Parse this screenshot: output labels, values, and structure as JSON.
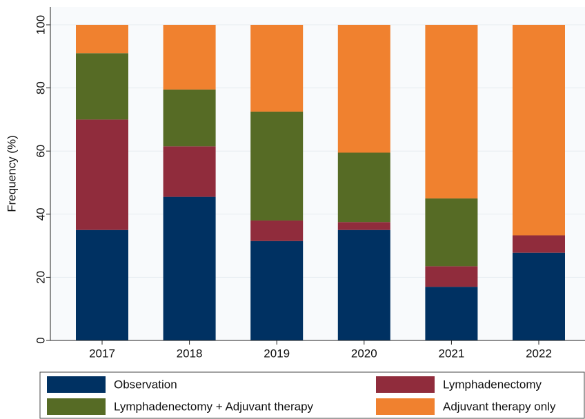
{
  "chart_data": {
    "type": "stacked_bar",
    "y_label": "Frequency (%)",
    "categories": [
      "2017",
      "2018",
      "2019",
      "2020",
      "2021",
      "2022"
    ],
    "series": [
      {
        "name": "Observation",
        "color": "#003162",
        "values": [
          35,
          45.5,
          31.5,
          35,
          17,
          27.8
        ]
      },
      {
        "name": "Lymphadenectomy",
        "color": "#902c3c",
        "values": [
          35,
          16,
          6.5,
          2.5,
          6.5,
          5.5
        ]
      },
      {
        "name": "Lymphadenectomy + Adjuvant therapy",
        "color": "#566b25",
        "values": [
          21,
          18,
          34.5,
          22,
          21.5,
          0
        ]
      },
      {
        "name": "Adjuvant therapy only",
        "color": "#f0812f",
        "values": [
          9,
          20.5,
          27.5,
          40.5,
          55,
          66.7
        ]
      }
    ],
    "ylim": [
      0,
      100
    ],
    "yticks": [
      0,
      20,
      40,
      60,
      80,
      100
    ],
    "grid": true
  }
}
